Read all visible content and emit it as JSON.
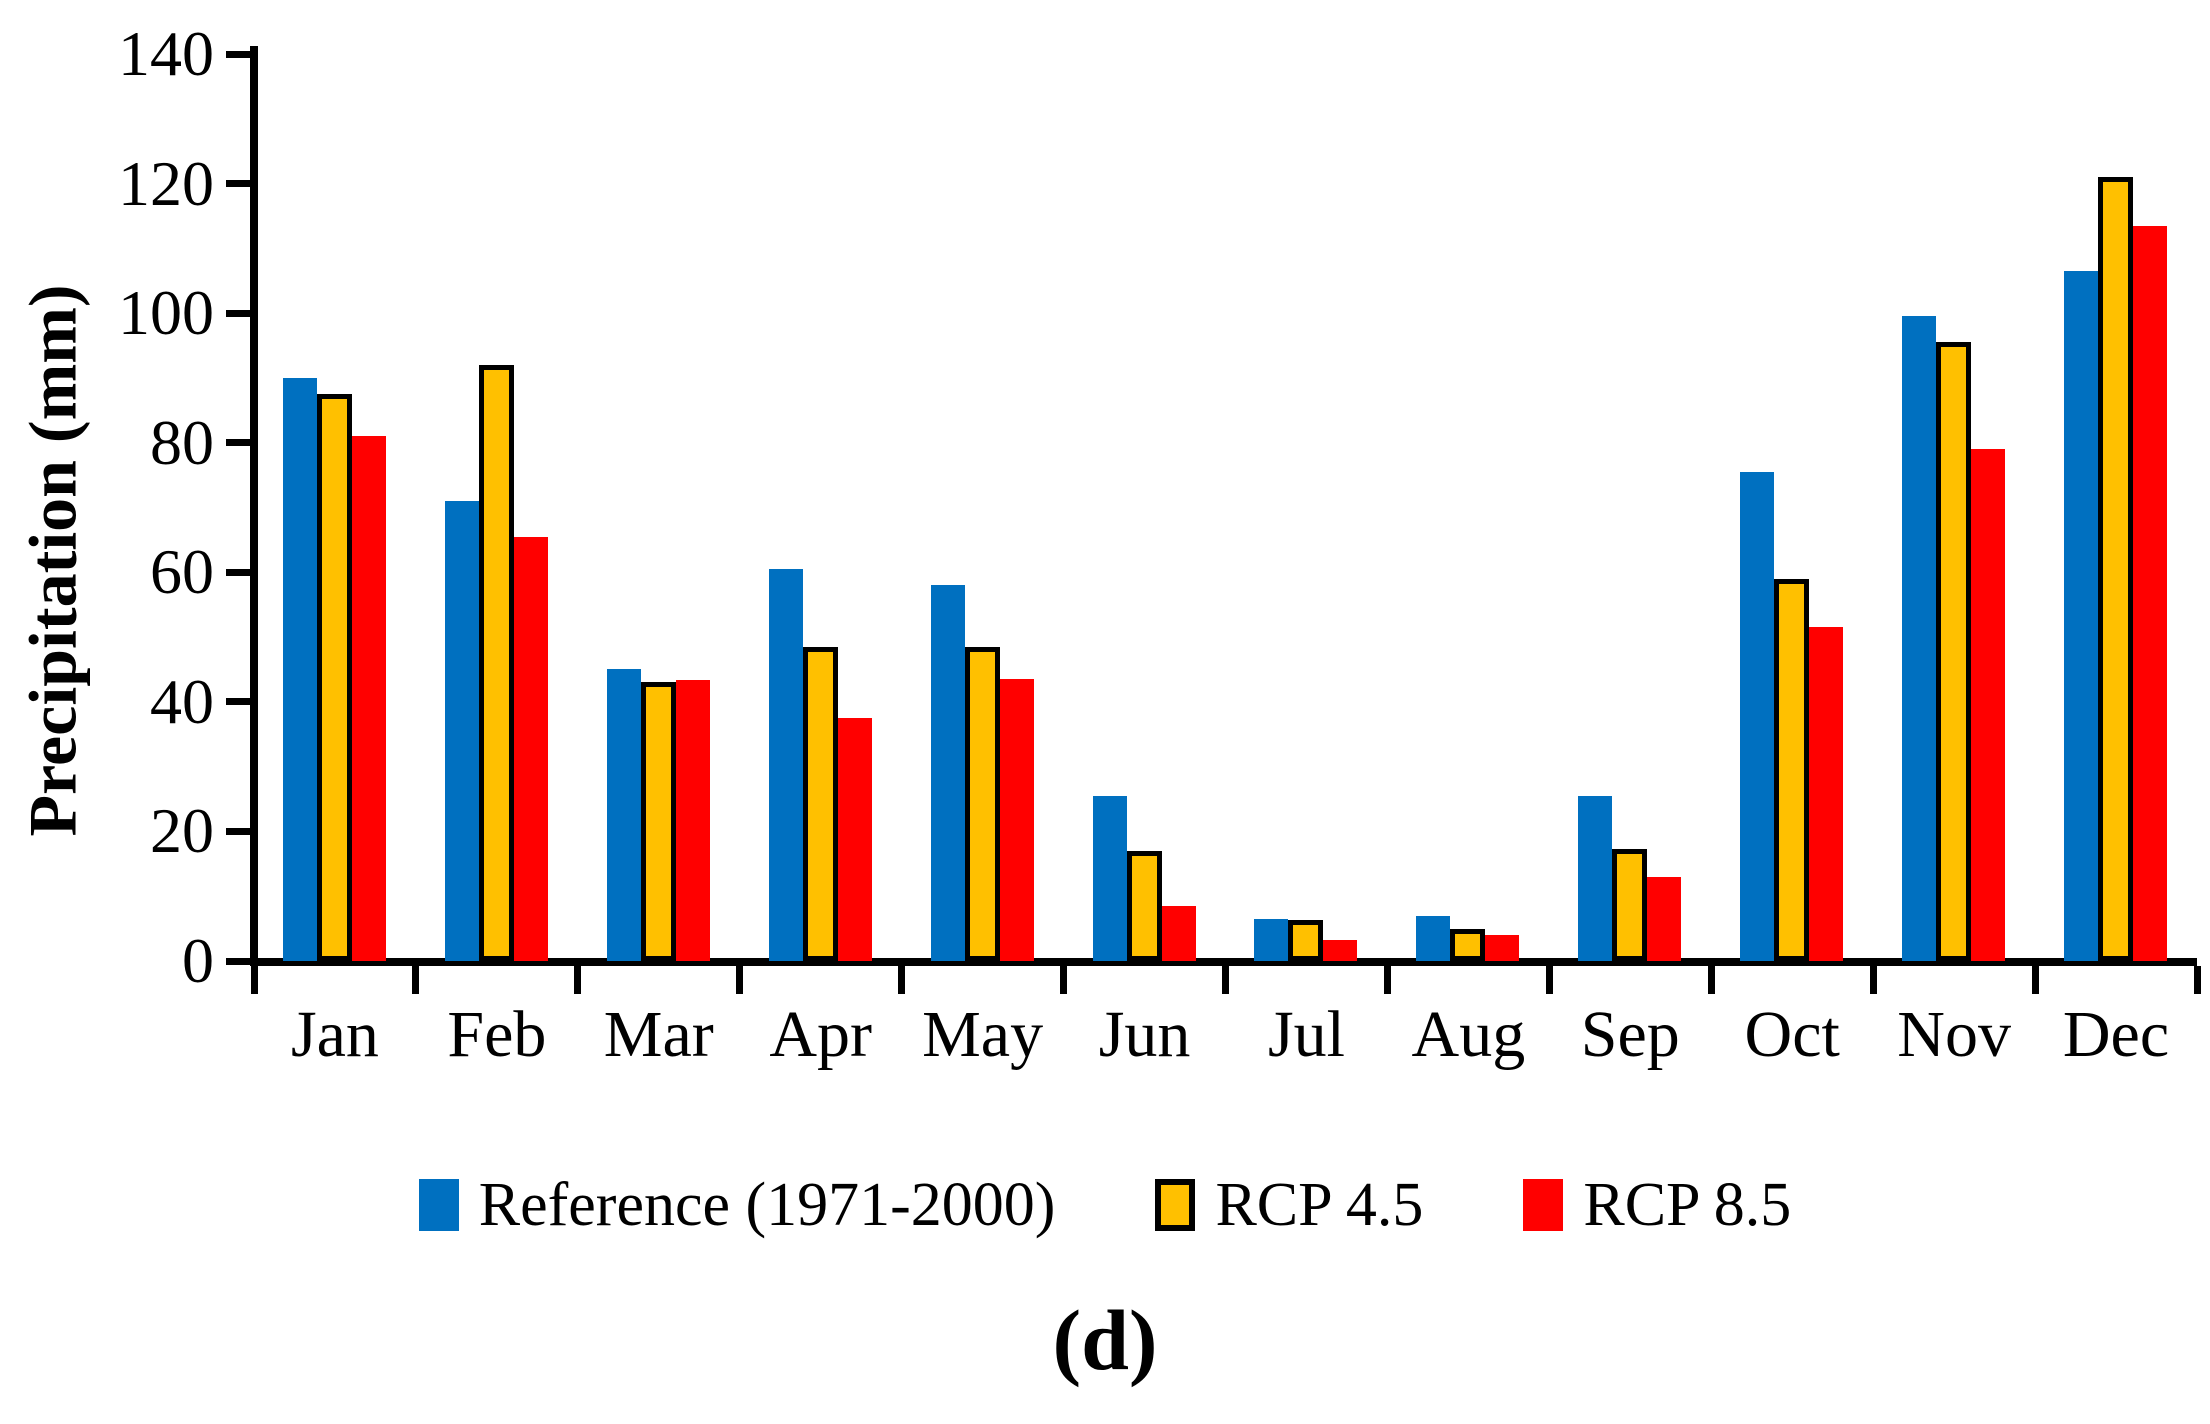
{
  "figure": {
    "caption": "(d)"
  },
  "chart_data": {
    "type": "bar",
    "title": "",
    "xlabel": "",
    "ylabel": "Precipitation (mm)",
    "ylim": [
      0,
      140
    ],
    "ytick_step": 20,
    "ytick_labels": [
      "0",
      "20",
      "40",
      "60",
      "80",
      "100",
      "120",
      "140"
    ],
    "grid": false,
    "legend_position": "bottom",
    "categories": [
      "Jan",
      "Feb",
      "Mar",
      "Apr",
      "May",
      "Jun",
      "Jul",
      "Aug",
      "Sep",
      "Oct",
      "Nov",
      "Dec"
    ],
    "series": [
      {
        "name": "Reference (1971-2000)",
        "color": "#0070C0",
        "outlined": false,
        "values": [
          90,
          71,
          45,
          60.5,
          58,
          25.5,
          6.5,
          7,
          25.5,
          75.5,
          99.5,
          106.5
        ]
      },
      {
        "name": "RCP 4.5",
        "color": "#FFC000",
        "outlined": true,
        "values": [
          87.5,
          92,
          43,
          48.5,
          48.5,
          17,
          6.3,
          5,
          17.3,
          59,
          95.5,
          121
        ]
      },
      {
        "name": "RCP 8.5",
        "color": "#FF0000",
        "outlined": false,
        "values": [
          81,
          65.5,
          43.3,
          37.5,
          43.5,
          8.5,
          3.2,
          4,
          13,
          51.5,
          79,
          113.5
        ]
      }
    ]
  }
}
